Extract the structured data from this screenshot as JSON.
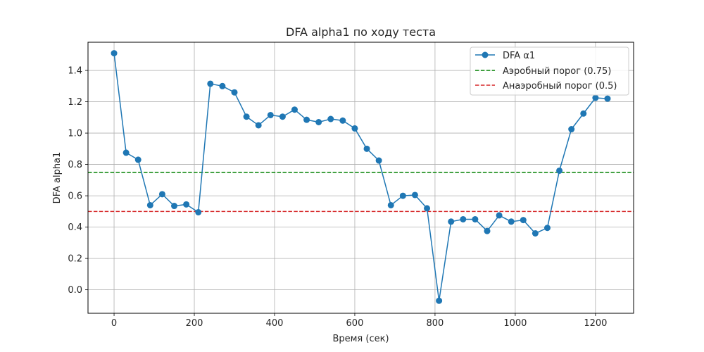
{
  "chart_data": {
    "type": "line",
    "title": "DFA alpha1 по ходу теста",
    "xlabel": "Время (сек)",
    "ylabel": "DFA alpha1",
    "xlim": [
      -65,
      1295
    ],
    "ylim": [
      -0.15,
      1.58
    ],
    "xticks": [
      0,
      200,
      400,
      600,
      800,
      1000,
      1200
    ],
    "yticks": [
      0.0,
      0.2,
      0.4,
      0.6,
      0.8,
      1.0,
      1.2,
      1.4
    ],
    "grid": true,
    "legend_position": "top-right",
    "series": [
      {
        "name": "DFA α1",
        "color": "#1f77b4",
        "marker": "circle",
        "x": [
          0,
          30,
          60,
          90,
          120,
          150,
          180,
          210,
          240,
          270,
          300,
          330,
          360,
          390,
          420,
          450,
          480,
          510,
          540,
          570,
          600,
          630,
          660,
          690,
          720,
          750,
          780,
          810,
          840,
          870,
          900,
          930,
          960,
          990,
          1020,
          1050,
          1080,
          1110,
          1140,
          1170,
          1200,
          1230
        ],
        "y": [
          1.51,
          0.875,
          0.83,
          0.54,
          0.61,
          0.535,
          0.545,
          0.495,
          1.315,
          1.3,
          1.26,
          1.105,
          1.05,
          1.115,
          1.105,
          1.15,
          1.085,
          1.07,
          1.09,
          1.08,
          1.03,
          0.9,
          0.825,
          0.54,
          0.6,
          0.605,
          0.52,
          -0.07,
          0.435,
          0.45,
          0.45,
          0.375,
          0.475,
          0.435,
          0.445,
          0.36,
          0.395,
          0.76,
          1.025,
          1.125,
          1.225,
          1.22
        ]
      }
    ],
    "hlines": [
      {
        "name": "Аэробный порог (0.75)",
        "y": 0.75,
        "color": "#008000",
        "style": "dashed"
      },
      {
        "name": "Анаэробный порог (0.5)",
        "y": 0.5,
        "color": "#d62728",
        "style": "dashed"
      }
    ]
  }
}
